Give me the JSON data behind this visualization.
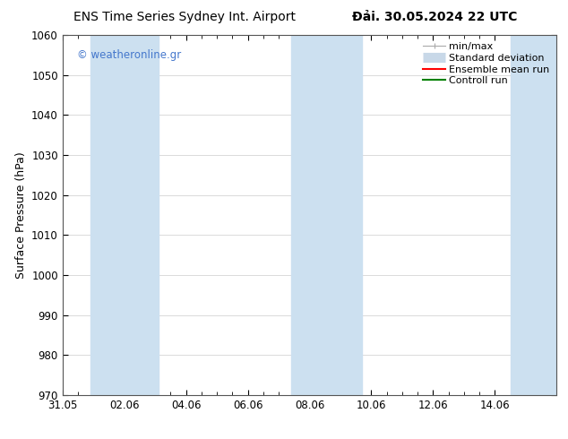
{
  "title_left": "ENS Time Series Sydney Int. Airport",
  "title_right": "Đải. 30.05.2024 22 UTC",
  "ylabel": "Surface Pressure (hPa)",
  "ylim": [
    970,
    1060
  ],
  "yticks": [
    970,
    980,
    990,
    1000,
    1010,
    1020,
    1030,
    1040,
    1050,
    1060
  ],
  "xmin": 0,
  "xmax": 16,
  "xtick_positions": [
    0,
    2,
    4,
    6,
    8,
    10,
    12,
    14
  ],
  "xtick_labels": [
    "31.05",
    "02.06",
    "04.06",
    "06.06",
    "08.06",
    "10.06",
    "12.06",
    "14.06"
  ],
  "shaded_bands": [
    {
      "xstart": 0.9,
      "xend": 3.1
    },
    {
      "xstart": 7.4,
      "xend": 9.7
    },
    {
      "xstart": 14.5,
      "xend": 16.0
    }
  ],
  "shaded_color": "#cce0f0",
  "watermark_text": "© weatheronline.gr",
  "watermark_color": "#4477cc",
  "legend_labels": [
    "min/max",
    "Standard deviation",
    "Ensemble mean run",
    "Controll run"
  ],
  "bg_color": "#ffffff",
  "grid_color": "#cccccc",
  "spine_color": "#555555",
  "title_fontsize": 10,
  "label_fontsize": 9,
  "tick_fontsize": 8.5,
  "legend_fontsize": 8
}
